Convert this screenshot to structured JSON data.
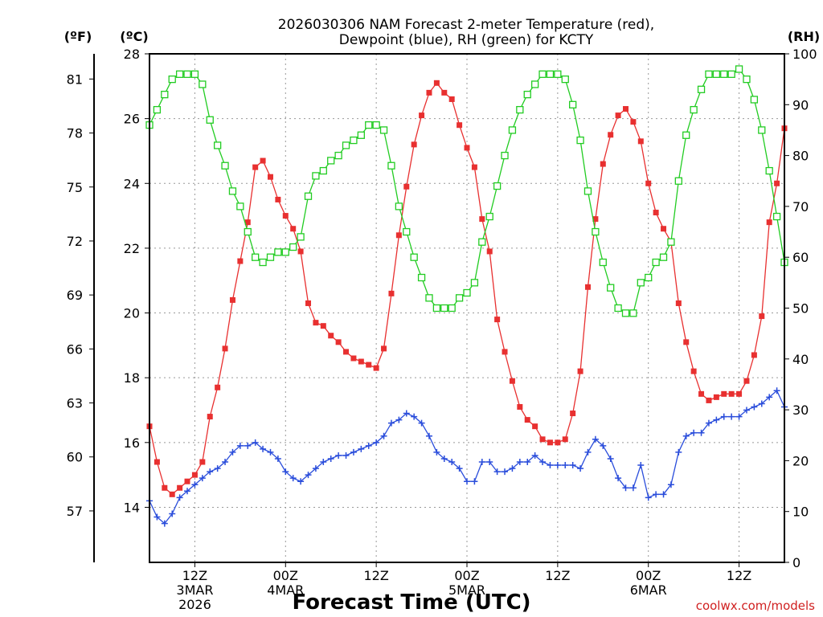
{
  "chart_data": {
    "type": "line",
    "title_lines": [
      "2026030306 NAM Forecast 2-meter Temperature (red),",
      "Dewpoint (blue), RH (green) for KCTY"
    ],
    "unit_labels": {
      "fahrenheit": "(ºF)",
      "celsius": "(ºC)",
      "rh": "(RH)"
    },
    "xlabel": "Forecast Time (UTC)",
    "watermark": "coolwx.com/models",
    "x_range_hours": [
      6,
      90
    ],
    "x_ticks": [
      {
        "hour": 12,
        "lines": [
          "12Z",
          "3MAR",
          "2026"
        ]
      },
      {
        "hour": 24,
        "lines": [
          "00Z",
          "4MAR"
        ]
      },
      {
        "hour": 36,
        "lines": [
          "12Z"
        ]
      },
      {
        "hour": 48,
        "lines": [
          "00Z",
          "5MAR"
        ]
      },
      {
        "hour": 60,
        "lines": [
          "12Z"
        ]
      },
      {
        "hour": 72,
        "lines": [
          "00Z",
          "6MAR"
        ]
      },
      {
        "hour": 84,
        "lines": [
          "12Z"
        ]
      }
    ],
    "celsius_axis": {
      "range": [
        12.3,
        28
      ],
      "ticks": [
        14,
        16,
        18,
        20,
        22,
        24,
        26,
        28
      ]
    },
    "fahrenheit_axis": {
      "ticks": [
        57,
        60,
        63,
        66,
        69,
        72,
        75,
        78,
        81
      ]
    },
    "rh_axis": {
      "range": [
        0,
        100
      ],
      "ticks": [
        0,
        10,
        20,
        30,
        40,
        50,
        60,
        70,
        80,
        90,
        100
      ]
    },
    "series": [
      {
        "name": "Temperature",
        "units": "C",
        "color": "#e83030",
        "marker": "filled-square",
        "points": [
          [
            6,
            16.5
          ],
          [
            7,
            15.4
          ],
          [
            8,
            14.6
          ],
          [
            9,
            14.4
          ],
          [
            10,
            14.6
          ],
          [
            11,
            14.8
          ],
          [
            12,
            15.0
          ],
          [
            13,
            15.4
          ],
          [
            14,
            16.8
          ],
          [
            15,
            17.7
          ],
          [
            16,
            18.9
          ],
          [
            17,
            20.4
          ],
          [
            18,
            21.6
          ],
          [
            19,
            22.8
          ],
          [
            20,
            24.5
          ],
          [
            21,
            24.7
          ],
          [
            22,
            24.2
          ],
          [
            23,
            23.5
          ],
          [
            24,
            23.0
          ],
          [
            25,
            22.6
          ],
          [
            26,
            21.9
          ],
          [
            27,
            20.3
          ],
          [
            28,
            19.7
          ],
          [
            29,
            19.6
          ],
          [
            30,
            19.3
          ],
          [
            31,
            19.1
          ],
          [
            32,
            18.8
          ],
          [
            33,
            18.6
          ],
          [
            34,
            18.5
          ],
          [
            35,
            18.4
          ],
          [
            36,
            18.3
          ],
          [
            37,
            18.9
          ],
          [
            38,
            20.6
          ],
          [
            39,
            22.4
          ],
          [
            40,
            23.9
          ],
          [
            41,
            25.2
          ],
          [
            42,
            26.1
          ],
          [
            43,
            26.8
          ],
          [
            44,
            27.1
          ],
          [
            45,
            26.8
          ],
          [
            46,
            26.6
          ],
          [
            47,
            25.8
          ],
          [
            48,
            25.1
          ],
          [
            49,
            24.5
          ],
          [
            50,
            22.9
          ],
          [
            51,
            21.9
          ],
          [
            52,
            19.8
          ],
          [
            53,
            18.8
          ],
          [
            54,
            17.9
          ],
          [
            55,
            17.1
          ],
          [
            56,
            16.7
          ],
          [
            57,
            16.5
          ],
          [
            58,
            16.1
          ],
          [
            59,
            16.0
          ],
          [
            60,
            16.0
          ],
          [
            61,
            16.1
          ],
          [
            62,
            16.9
          ],
          [
            63,
            18.2
          ],
          [
            64,
            20.8
          ],
          [
            65,
            22.9
          ],
          [
            66,
            24.6
          ],
          [
            67,
            25.5
          ],
          [
            68,
            26.1
          ],
          [
            69,
            26.3
          ],
          [
            70,
            25.9
          ],
          [
            71,
            25.3
          ],
          [
            72,
            24.0
          ],
          [
            73,
            23.1
          ],
          [
            74,
            22.6
          ],
          [
            75,
            22.2
          ],
          [
            76,
            20.3
          ],
          [
            77,
            19.1
          ],
          [
            78,
            18.2
          ],
          [
            79,
            17.5
          ],
          [
            80,
            17.3
          ],
          [
            81,
            17.4
          ],
          [
            82,
            17.5
          ],
          [
            83,
            17.5
          ],
          [
            84,
            17.5
          ],
          [
            85,
            17.9
          ],
          [
            86,
            18.7
          ],
          [
            87,
            19.9
          ],
          [
            88,
            22.8
          ],
          [
            89,
            24.0
          ],
          [
            90,
            25.7
          ]
        ]
      },
      {
        "name": "Dewpoint",
        "units": "C",
        "color": "#2a4ddb",
        "marker": "plus",
        "points": [
          [
            6,
            14.2
          ],
          [
            7,
            13.7
          ],
          [
            8,
            13.5
          ],
          [
            9,
            13.8
          ],
          [
            10,
            14.3
          ],
          [
            11,
            14.5
          ],
          [
            12,
            14.7
          ],
          [
            13,
            14.9
          ],
          [
            14,
            15.1
          ],
          [
            15,
            15.2
          ],
          [
            16,
            15.4
          ],
          [
            17,
            15.7
          ],
          [
            18,
            15.9
          ],
          [
            19,
            15.9
          ],
          [
            20,
            16.0
          ],
          [
            21,
            15.8
          ],
          [
            22,
            15.7
          ],
          [
            23,
            15.5
          ],
          [
            24,
            15.1
          ],
          [
            25,
            14.9
          ],
          [
            26,
            14.8
          ],
          [
            27,
            15.0
          ],
          [
            28,
            15.2
          ],
          [
            29,
            15.4
          ],
          [
            30,
            15.5
          ],
          [
            31,
            15.6
          ],
          [
            32,
            15.6
          ],
          [
            33,
            15.7
          ],
          [
            34,
            15.8
          ],
          [
            35,
            15.9
          ],
          [
            36,
            16.0
          ],
          [
            37,
            16.2
          ],
          [
            38,
            16.6
          ],
          [
            39,
            16.7
          ],
          [
            40,
            16.9
          ],
          [
            41,
            16.8
          ],
          [
            42,
            16.6
          ],
          [
            43,
            16.2
          ],
          [
            44,
            15.7
          ],
          [
            45,
            15.5
          ],
          [
            46,
            15.4
          ],
          [
            47,
            15.2
          ],
          [
            48,
            14.8
          ],
          [
            49,
            14.8
          ],
          [
            50,
            15.4
          ],
          [
            51,
            15.4
          ],
          [
            52,
            15.1
          ],
          [
            53,
            15.1
          ],
          [
            54,
            15.2
          ],
          [
            55,
            15.4
          ],
          [
            56,
            15.4
          ],
          [
            57,
            15.6
          ],
          [
            58,
            15.4
          ],
          [
            59,
            15.3
          ],
          [
            60,
            15.3
          ],
          [
            61,
            15.3
          ],
          [
            62,
            15.3
          ],
          [
            63,
            15.2
          ],
          [
            64,
            15.7
          ],
          [
            65,
            16.1
          ],
          [
            66,
            15.9
          ],
          [
            67,
            15.5
          ],
          [
            68,
            14.9
          ],
          [
            69,
            14.6
          ],
          [
            70,
            14.6
          ],
          [
            71,
            15.3
          ],
          [
            72,
            14.3
          ],
          [
            73,
            14.4
          ],
          [
            74,
            14.4
          ],
          [
            75,
            14.7
          ],
          [
            76,
            15.7
          ],
          [
            77,
            16.2
          ],
          [
            78,
            16.3
          ],
          [
            79,
            16.3
          ],
          [
            80,
            16.6
          ],
          [
            81,
            16.7
          ],
          [
            82,
            16.8
          ],
          [
            83,
            16.8
          ],
          [
            84,
            16.8
          ],
          [
            85,
            17.0
          ],
          [
            86,
            17.1
          ],
          [
            87,
            17.2
          ],
          [
            88,
            17.4
          ],
          [
            89,
            17.6
          ],
          [
            90,
            17.1
          ]
        ]
      },
      {
        "name": "Relative Humidity",
        "units": "%",
        "color": "#22cc22",
        "marker": "open-square",
        "points": [
          [
            6,
            86
          ],
          [
            7,
            89
          ],
          [
            8,
            92
          ],
          [
            9,
            95
          ],
          [
            10,
            96
          ],
          [
            11,
            96
          ],
          [
            12,
            96
          ],
          [
            13,
            94
          ],
          [
            14,
            87
          ],
          [
            15,
            82
          ],
          [
            16,
            78
          ],
          [
            17,
            73
          ],
          [
            18,
            70
          ],
          [
            19,
            65
          ],
          [
            20,
            60
          ],
          [
            21,
            59
          ],
          [
            22,
            60
          ],
          [
            23,
            61
          ],
          [
            24,
            61
          ],
          [
            25,
            62
          ],
          [
            26,
            64
          ],
          [
            27,
            72
          ],
          [
            28,
            76
          ],
          [
            29,
            77
          ],
          [
            30,
            79
          ],
          [
            31,
            80
          ],
          [
            32,
            82
          ],
          [
            33,
            83
          ],
          [
            34,
            84
          ],
          [
            35,
            86
          ],
          [
            36,
            86
          ],
          [
            37,
            85
          ],
          [
            38,
            78
          ],
          [
            39,
            70
          ],
          [
            40,
            65
          ],
          [
            41,
            60
          ],
          [
            42,
            56
          ],
          [
            43,
            52
          ],
          [
            44,
            50
          ],
          [
            45,
            50
          ],
          [
            46,
            50
          ],
          [
            47,
            52
          ],
          [
            48,
            53
          ],
          [
            49,
            55
          ],
          [
            50,
            63
          ],
          [
            51,
            68
          ],
          [
            52,
            74
          ],
          [
            53,
            80
          ],
          [
            54,
            85
          ],
          [
            55,
            89
          ],
          [
            56,
            92
          ],
          [
            57,
            94
          ],
          [
            58,
            96
          ],
          [
            59,
            96
          ],
          [
            60,
            96
          ],
          [
            61,
            95
          ],
          [
            62,
            90
          ],
          [
            63,
            83
          ],
          [
            64,
            73
          ],
          [
            65,
            65
          ],
          [
            66,
            59
          ],
          [
            67,
            54
          ],
          [
            68,
            50
          ],
          [
            69,
            49
          ],
          [
            70,
            49
          ],
          [
            71,
            55
          ],
          [
            72,
            56
          ],
          [
            73,
            59
          ],
          [
            74,
            60
          ],
          [
            75,
            63
          ],
          [
            76,
            75
          ],
          [
            77,
            84
          ],
          [
            78,
            89
          ],
          [
            79,
            93
          ],
          [
            80,
            96
          ],
          [
            81,
            96
          ],
          [
            82,
            96
          ],
          [
            83,
            96
          ],
          [
            84,
            97
          ],
          [
            85,
            95
          ],
          [
            86,
            91
          ],
          [
            87,
            85
          ],
          [
            88,
            77
          ],
          [
            89,
            68
          ],
          [
            90,
            59
          ]
        ]
      }
    ]
  }
}
